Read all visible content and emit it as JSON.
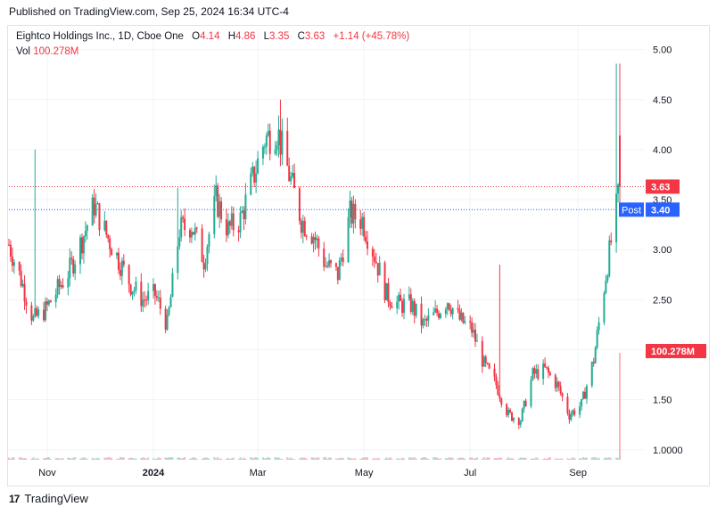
{
  "published": "Published on TradingView.com, Sep 25, 2024 16:34 UTC-4",
  "legend": {
    "symbol": "Eightco Holdings Inc., 1D, Cboe One",
    "o_label": "O",
    "o": "4.14",
    "h_label": "H",
    "h": "4.86",
    "l_label": "L",
    "l": "3.35",
    "c_label": "C",
    "c": "3.63",
    "change": "+1.14 (+45.78%)",
    "vol_label": "Vol",
    "vol": "100.278M"
  },
  "price_tags": {
    "last": "3.63",
    "post_label": "Post",
    "post": "3.40",
    "volume": "100.278M"
  },
  "footer": {
    "brand": "TradingView",
    "logo": "17"
  },
  "colors": {
    "up": "#22ab94",
    "down": "#f23645",
    "post": "#2962ff",
    "grid": "#f0f3fa"
  },
  "chart_data": {
    "type": "candlestick",
    "y_ticks": [
      "5.00",
      "4.50",
      "4.00",
      "3.50",
      "3.00",
      "2.50",
      "2.00",
      "1.50",
      "1.0000"
    ],
    "ylim": [
      0.9,
      5.05
    ],
    "x_ticks": [
      "Nov",
      "2024",
      "Mar",
      "May",
      "Jul",
      "Sep"
    ],
    "x_tick_dates": [
      "2023-11-01",
      "2024-01-01",
      "2024-03-01",
      "2024-05-01",
      "2024-07-01",
      "2024-09-01"
    ],
    "date_range": [
      "2023-10-10",
      "2024-09-25"
    ],
    "path_dates": [
      "2023-10-10",
      "2023-10-17",
      "2023-10-24",
      "2023-10-31",
      "2023-11-07",
      "2023-11-14",
      "2023-11-21",
      "2023-11-28",
      "2023-12-05",
      "2023-12-12",
      "2023-12-19",
      "2023-12-26",
      "2024-01-02",
      "2024-01-09",
      "2024-01-16",
      "2024-01-23",
      "2024-01-30",
      "2024-02-06",
      "2024-02-13",
      "2024-02-20",
      "2024-02-27",
      "2024-03-05",
      "2024-03-12",
      "2024-03-19",
      "2024-03-26",
      "2024-04-02",
      "2024-04-09",
      "2024-04-16",
      "2024-04-23",
      "2024-04-30",
      "2024-05-07",
      "2024-05-14",
      "2024-05-21",
      "2024-05-28",
      "2024-06-04",
      "2024-06-11",
      "2024-06-18",
      "2024-06-25",
      "2024-07-02",
      "2024-07-09",
      "2024-07-16",
      "2024-07-23",
      "2024-07-30",
      "2024-08-06",
      "2024-08-13",
      "2024-08-20",
      "2024-08-27",
      "2024-09-03",
      "2024-09-10",
      "2024-09-17",
      "2024-09-25"
    ],
    "path_closes": [
      3.05,
      2.7,
      2.3,
      2.4,
      2.6,
      2.8,
      3.1,
      3.45,
      3.15,
      2.9,
      2.65,
      2.5,
      2.55,
      2.25,
      3.2,
      3.25,
      2.9,
      3.5,
      3.2,
      3.3,
      3.7,
      4.1,
      4.2,
      3.75,
      3.3,
      3.15,
      2.85,
      2.75,
      3.35,
      3.3,
      2.95,
      2.55,
      2.45,
      2.45,
      2.25,
      2.35,
      2.5,
      2.3,
      2.2,
      1.85,
      1.65,
      1.35,
      1.3,
      1.75,
      1.8,
      1.65,
      1.35,
      1.45,
      1.9,
      2.75,
      3.63
    ],
    "last_candle": {
      "date": "2024-09-25",
      "open": 4.14,
      "high": 4.86,
      "low": 3.35,
      "close": 3.63
    },
    "last_price": 3.63,
    "post_price": 3.4,
    "volume_last": "100.278M"
  }
}
